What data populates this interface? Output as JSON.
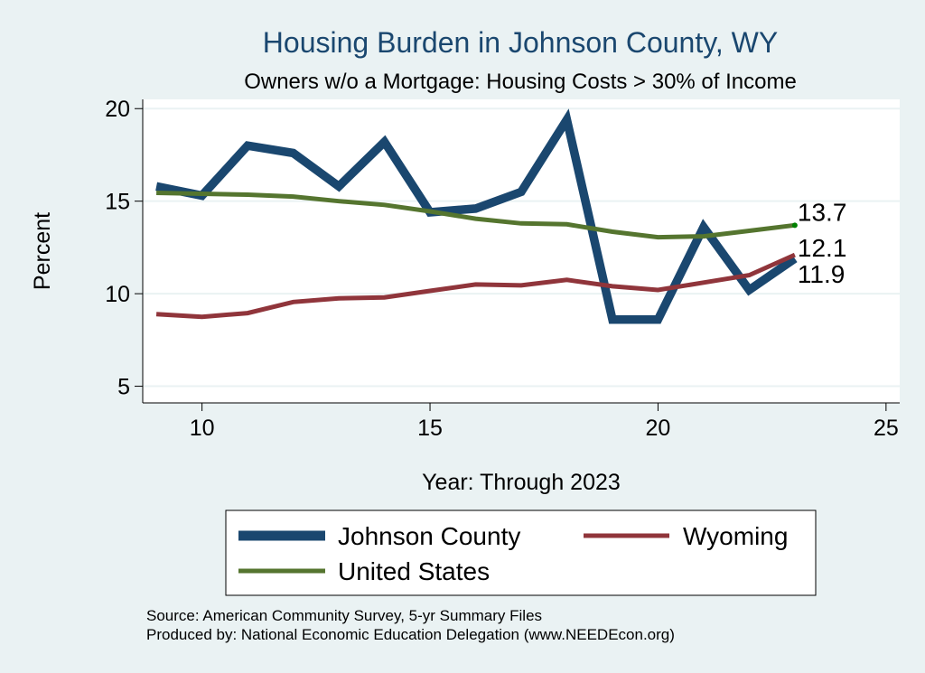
{
  "chart_data": {
    "type": "line",
    "title": "Housing Burden in Johnson County, WY",
    "subtitle": "Owners w/o a Mortgage: Housing Costs > 30% of Income",
    "xlabel": "Year: Through 2023",
    "ylabel": "Percent",
    "xlim": [
      8.7,
      25.3
    ],
    "ylim": [
      4.1,
      20.5
    ],
    "x_ticks": [
      10,
      15,
      20,
      25
    ],
    "y_ticks": [
      5,
      10,
      15,
      20
    ],
    "grid": true,
    "legend_position": "bottom",
    "x": [
      9,
      10,
      11,
      12,
      13,
      14,
      15,
      16,
      17,
      18,
      19,
      20,
      21,
      22,
      23
    ],
    "series": [
      {
        "name": "Johnson County",
        "color": "#1a476f",
        "values": [
          15.8,
          15.3,
          18.0,
          17.6,
          15.8,
          18.2,
          14.4,
          14.6,
          15.5,
          19.4,
          8.6,
          8.6,
          13.6,
          10.2,
          11.9
        ],
        "end_label": "11.9"
      },
      {
        "name": "Wyoming",
        "color": "#90353b",
        "values": [
          8.9,
          8.75,
          8.95,
          9.55,
          9.75,
          9.8,
          10.15,
          10.5,
          10.45,
          10.75,
          10.4,
          10.2,
          10.6,
          11.0,
          12.1
        ],
        "end_label": "12.1"
      },
      {
        "name": "United States",
        "color": "#55752f",
        "values": [
          15.45,
          15.4,
          15.35,
          15.25,
          15.0,
          14.8,
          14.45,
          14.05,
          13.8,
          13.75,
          13.35,
          13.05,
          13.1,
          13.4,
          13.7
        ],
        "end_label": "13.7"
      }
    ]
  },
  "footer": {
    "source": "Source: American Community Survey, 5-yr Summary Files",
    "produced": "Produced by: National Economic Education Delegation (www.NEEDEcon.org)"
  }
}
